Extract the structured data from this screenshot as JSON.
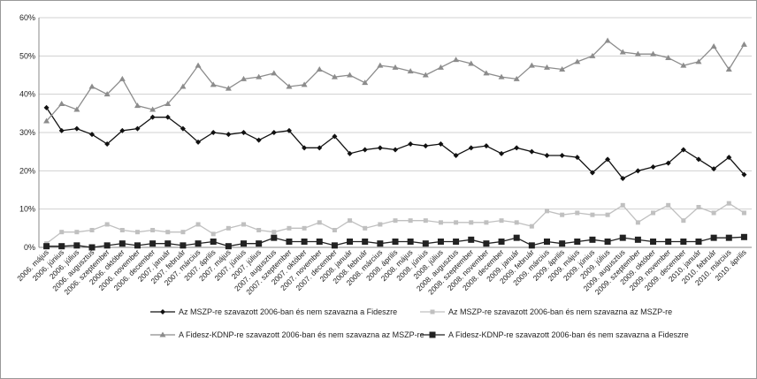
{
  "chart_data": {
    "type": "line",
    "categories": [
      "2006. május",
      "2006. június",
      "2006. július",
      "2006. augusztus",
      "2006. szeptember",
      "2006. október",
      "2006. november",
      "2006. december",
      "2007. január",
      "2007. február",
      "2007. március",
      "2007. április",
      "2007. május",
      "2007. június",
      "2007. július",
      "2007. augusztus",
      "2007. szeptember",
      "2007. október",
      "2007. november",
      "2007. december",
      "2008. január",
      "2008. február",
      "2008. március",
      "2008. április",
      "2008. május",
      "2008. június",
      "2008. július",
      "2008. augusztus",
      "2008. szeptember",
      "2008. november",
      "2008. december",
      "2009. január",
      "2009. február",
      "2009. március",
      "2009. április",
      "2009. május",
      "2009. június",
      "2009. július",
      "2009. augusztus",
      "2009. szeptember",
      "2009. október",
      "2009. november",
      "2009. december",
      "2010. január",
      "2010. február",
      "2010. március",
      "2010. április"
    ],
    "series": [
      {
        "name": "Az MSZP-re szavazott 2006-ban és nem szavazna a Fideszre",
        "color": "#111111",
        "marker": "diamond",
        "values": [
          36.5,
          30.5,
          31,
          29.5,
          27,
          30.5,
          31,
          34,
          34,
          31,
          27.5,
          30,
          29.5,
          30,
          28,
          30,
          30.5,
          26,
          26,
          29,
          24.5,
          25.5,
          26,
          25.5,
          27,
          26.5,
          27,
          24,
          26,
          26.5,
          24.5,
          26,
          25,
          24,
          24,
          23.5,
          19.5,
          23,
          18,
          20,
          21,
          22,
          25.5,
          23,
          20.5,
          23.5,
          19
        ]
      },
      {
        "name": "Az MSZP-re szavazott 2006-ban és nem szavazna az MSZP-re",
        "color": "#c0c0c0",
        "marker": "square",
        "values": [
          1,
          4,
          4,
          4.5,
          6,
          4.5,
          4,
          4.5,
          4,
          4,
          6,
          3.5,
          5,
          6,
          4.5,
          4,
          5,
          5,
          6.5,
          4.5,
          7,
          5,
          6,
          7,
          7,
          7,
          6.5,
          6.5,
          6.5,
          6.5,
          7,
          6.5,
          5.5,
          9.5,
          8.5,
          9,
          8.5,
          8.5,
          11,
          6.5,
          9,
          11,
          7,
          10.5,
          9,
          11.5,
          9
        ]
      },
      {
        "name": "A Fidesz-KDNP-re szavazott 2006-ban és nem szavazna az MSZP-re",
        "color": "#8c8c8c",
        "marker": "triangle",
        "values": [
          33,
          37.5,
          36,
          42,
          40,
          44,
          37,
          36,
          37.5,
          42,
          47.5,
          42.5,
          41.5,
          44,
          44.5,
          45.5,
          42,
          42.5,
          46.5,
          44.5,
          45,
          43,
          47.5,
          47,
          46,
          45,
          47,
          49,
          48,
          45.5,
          44.5,
          44,
          47.5,
          47,
          46.5,
          48.5,
          50,
          54,
          51,
          50.5,
          50.5,
          49.5,
          47.5,
          48.5,
          52.5,
          46.5,
          53
        ]
      },
      {
        "name": "A Fidesz-KDNP-re szavazott 2006-ban és nem szavazna a Fideszre",
        "color": "#222222",
        "marker": "bigsquare",
        "values": [
          0.3,
          0.3,
          0.5,
          0,
          0.5,
          1,
          0.5,
          1,
          1,
          0.5,
          1,
          1.5,
          0.3,
          1,
          1,
          2.5,
          1.5,
          1.5,
          1.5,
          0.5,
          1.5,
          1.5,
          1,
          1.5,
          1.5,
          1,
          1.5,
          1.5,
          2,
          1,
          1.5,
          2.5,
          0.5,
          1.5,
          1,
          1.5,
          2,
          1.5,
          2.5,
          2,
          1.5,
          1.5,
          1.5,
          1.5,
          2.5,
          2.5,
          2.7
        ]
      }
    ],
    "ylim": [
      0,
      60
    ],
    "yticks": [
      {
        "value": 0,
        "label": "0%"
      },
      {
        "value": 10,
        "label": "10%"
      },
      {
        "value": 20,
        "label": "20%"
      },
      {
        "value": 30,
        "label": "30%"
      },
      {
        "value": 40,
        "label": "40%"
      },
      {
        "value": 50,
        "label": "50%"
      },
      {
        "value": 60,
        "label": "60%"
      }
    ],
    "grid": true
  }
}
